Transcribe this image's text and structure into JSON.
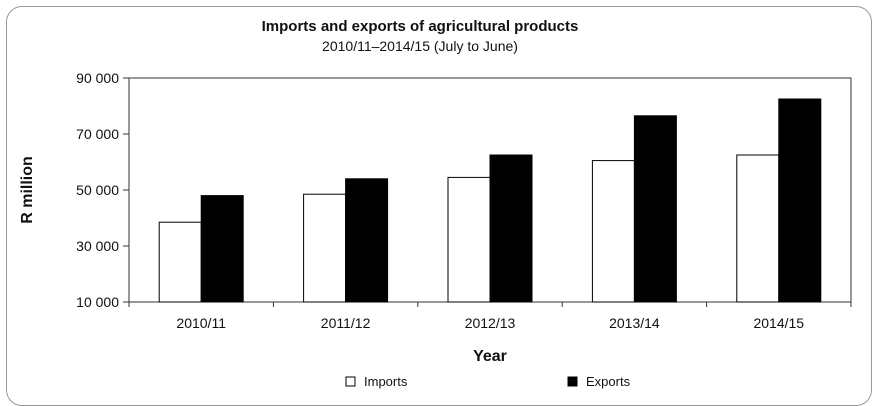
{
  "chart_data": {
    "type": "bar",
    "title": "Imports and exports of agricultural products",
    "subtitle": "2010/11–2014/15 (July to June)",
    "xlabel": "Year",
    "ylabel": "R million",
    "categories": [
      "2010/11",
      "2011/12",
      "2012/13",
      "2013/14",
      "2014/15"
    ],
    "series": [
      {
        "name": "Imports",
        "values": [
          38500,
          48500,
          54500,
          60500,
          62500
        ],
        "color": "#ffffff"
      },
      {
        "name": "Exports",
        "values": [
          48000,
          54000,
          62500,
          76500,
          82500
        ],
        "color": "#000000"
      }
    ],
    "ylim": [
      10000,
      90000
    ],
    "yticks": [
      10000,
      30000,
      50000,
      70000,
      90000
    ],
    "ytick_labels": [
      "10 000",
      "30 000",
      "50 000",
      "70 000",
      "90 000"
    ],
    "grid": false,
    "legend_position": "bottom"
  }
}
